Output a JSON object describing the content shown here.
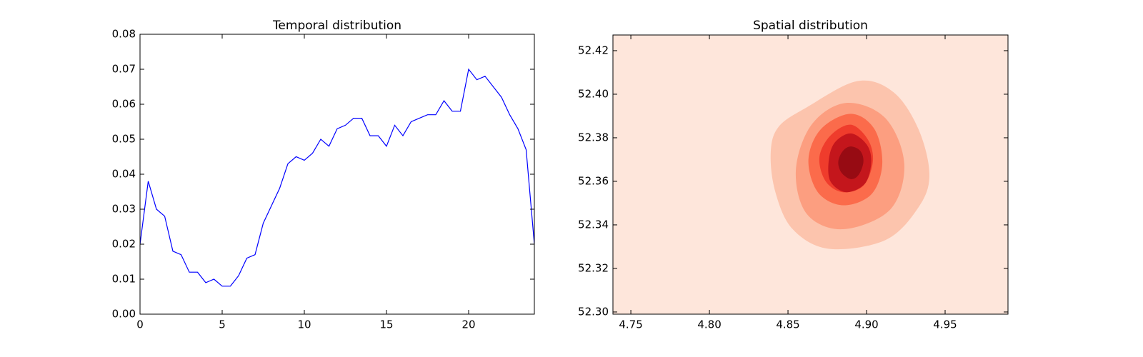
{
  "chart_data": [
    {
      "type": "line",
      "title": "Temporal distribution",
      "x": [
        0,
        0.5,
        1,
        1.5,
        2,
        2.5,
        3,
        3.5,
        4,
        4.5,
        5,
        5.5,
        6,
        6.5,
        7,
        7.5,
        8,
        8.5,
        9,
        9.5,
        10,
        10.5,
        11,
        11.5,
        12,
        12.5,
        13,
        13.5,
        14,
        14.5,
        15,
        15.5,
        16,
        16.5,
        17,
        17.5,
        18,
        18.5,
        19,
        19.5,
        20,
        20.5,
        21,
        21.5,
        22,
        22.5,
        23,
        23.5,
        24
      ],
      "series": [
        {
          "color": "#0000ff",
          "values": [
            0.02,
            0.038,
            0.03,
            0.028,
            0.018,
            0.017,
            0.012,
            0.012,
            0.009,
            0.01,
            0.008,
            0.008,
            0.011,
            0.016,
            0.017,
            0.026,
            0.031,
            0.036,
            0.043,
            0.045,
            0.044,
            0.046,
            0.05,
            0.048,
            0.053,
            0.054,
            0.056,
            0.056,
            0.051,
            0.051,
            0.048,
            0.054,
            0.051,
            0.055,
            0.056,
            0.057,
            0.057,
            0.061,
            0.058,
            0.058,
            0.07,
            0.067,
            0.068,
            0.065,
            0.062,
            0.057,
            0.053,
            0.047,
            0.02
          ]
        }
      ],
      "xlim": [
        0,
        24
      ],
      "xticks": [
        0,
        5,
        10,
        15,
        20
      ],
      "ylim": [
        0,
        0.08
      ],
      "yticks": [
        {
          "value": 0,
          "label": "0.00"
        },
        0.01,
        0.02,
        0.03,
        0.04,
        0.05,
        0.06,
        0.07,
        0.08
      ]
    },
    {
      "type": "contour",
      "title": "Spatial distribution",
      "background": "#fee6db",
      "contours": [
        {
          "color": "#fcc4ad",
          "x": [
            4.894,
            4.917,
            4.933,
            4.94,
            4.933,
            4.912,
            4.876,
            4.853,
            4.842,
            4.839,
            4.844,
            4.862
          ],
          "y": [
            52.406,
            52.401,
            52.384,
            52.363,
            52.348,
            52.333,
            52.329,
            52.338,
            52.355,
            52.373,
            52.385,
            52.394
          ]
        },
        {
          "color": "#fc9e80",
          "x": [
            4.887,
            4.912,
            4.924,
            4.915,
            4.885,
            4.862,
            4.855,
            4.865
          ],
          "y": [
            52.396,
            52.389,
            52.368,
            52.347,
            52.338,
            52.345,
            52.365,
            52.386
          ]
        },
        {
          "color": "#fb6b4b",
          "x": [
            4.89,
            4.905,
            4.91,
            4.903,
            4.885,
            4.869,
            4.863,
            4.871
          ],
          "y": [
            52.391,
            52.384,
            52.368,
            52.354,
            52.349,
            52.355,
            52.37,
            52.384
          ]
        },
        {
          "color": "#ef3c2c",
          "x": [
            4.89,
            4.901,
            4.904,
            4.898,
            4.885,
            4.874,
            4.87,
            4.877
          ],
          "y": [
            52.386,
            52.379,
            52.369,
            52.358,
            52.355,
            52.36,
            52.371,
            52.381
          ]
        },
        {
          "color": "#c4161c",
          "x": [
            4.89,
            4.9,
            4.903,
            4.899,
            4.887,
            4.877,
            4.876,
            4.88
          ],
          "y": [
            52.382,
            52.377,
            52.369,
            52.359,
            52.355,
            52.36,
            52.37,
            52.378
          ]
        },
        {
          "color": "#970b13",
          "x": [
            4.89,
            4.896,
            4.898,
            4.895,
            4.89,
            4.884,
            4.882,
            4.885
          ],
          "y": [
            52.376,
            52.374,
            52.369,
            52.363,
            52.361,
            52.364,
            52.369,
            52.374
          ]
        }
      ],
      "xlim": [
        4.7386,
        4.99
      ],
      "xticks": [
        4.75,
        {
          "value": 4.8,
          "label": "4.80"
        },
        4.85,
        {
          "value": 4.9,
          "label": "4.90"
        },
        4.95
      ],
      "ylim": [
        52.299,
        52.4272
      ],
      "yticks": [
        {
          "value": 52.3,
          "label": "52.30"
        },
        52.32,
        52.34,
        52.36,
        52.38,
        {
          "value": 52.4,
          "label": "52.40"
        },
        52.42
      ]
    }
  ]
}
